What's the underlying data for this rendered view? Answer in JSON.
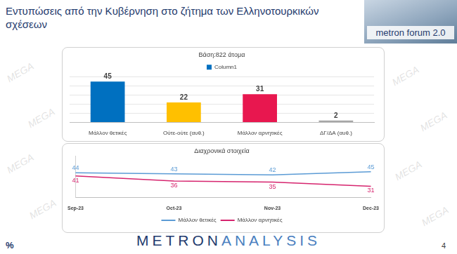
{
  "page": {
    "title": "Εντυπώσεις από την Κυβέρνηση στο ζήτημα των Ελληνοτουρκικών σχέσεων",
    "logo": "metron forum 2.0",
    "footer": [
      "METRON",
      "ANALYSIS"
    ],
    "corner_mark": "%",
    "page_number": 4,
    "watermark": "MEGA"
  },
  "chart_data": [
    {
      "type": "bar",
      "title": "Βάση:822 άτομα",
      "categories": [
        "Μάλλον θετικές",
        "Ούτε-ούτε (αυθ.)",
        "Μάλλον αρνητικές",
        "ΔΓ/ΔΑ (αυθ.)"
      ],
      "series": [
        {
          "name": "Column1",
          "values": [
            45,
            22,
            31,
            2
          ]
        }
      ],
      "colors": [
        "#0070c0",
        "#ffc000",
        "#e8174f",
        "#a6a6a6"
      ],
      "ylim": [
        0,
        50
      ],
      "yticks": [
        0,
        10,
        20,
        30,
        40,
        50
      ],
      "grid": true,
      "legend": "top",
      "data_labels": true,
      "tick_labels": "x"
    },
    {
      "type": "line",
      "title": "Διαχρονικά στοιχεία",
      "categories": [
        "Sep-23",
        "Oct-23",
        "Nov-23",
        "Dec-23"
      ],
      "series": [
        {
          "name": "Μάλλον θετικές",
          "color": "#5b9bd5",
          "values": [
            44,
            43,
            42,
            45
          ]
        },
        {
          "name": "Μάλλον αρνητικές",
          "color": "#d6246e",
          "values": [
            41,
            36,
            35,
            31
          ]
        }
      ],
      "ylim": [
        20,
        60
      ],
      "grid": false,
      "legend": "bottom",
      "data_labels": true,
      "tick_labels": "x"
    }
  ]
}
